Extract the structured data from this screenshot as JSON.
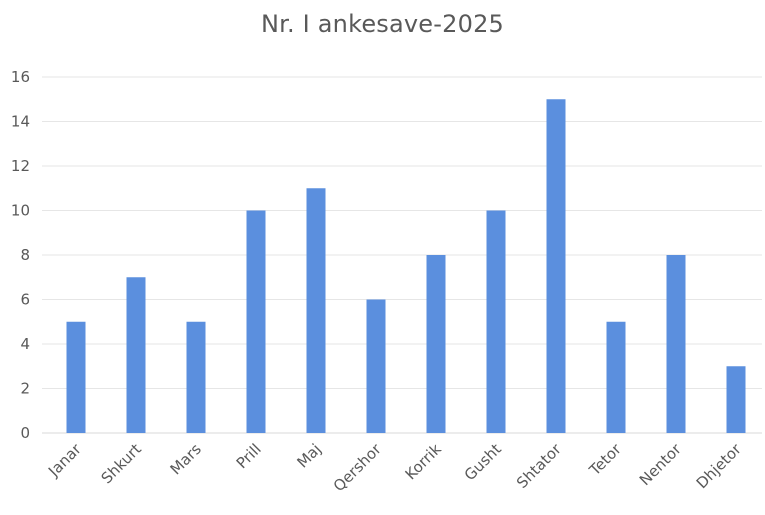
{
  "chart_data": {
    "type": "bar",
    "title": "Nr. I ankesave-2025",
    "xlabel": "",
    "ylabel": "",
    "categories": [
      "Janar",
      "Shkurt",
      "Mars",
      "Prill",
      "Maj",
      "Qershor",
      "Korrik",
      "Gusht",
      "Shtator",
      "Tetor",
      "Nentor",
      "Dhjetor"
    ],
    "values": [
      5,
      7,
      5,
      10,
      11,
      6,
      8,
      10,
      15,
      5,
      8,
      3
    ],
    "ylim": [
      0,
      16
    ],
    "yticks": [
      "0",
      "2",
      "4",
      "6",
      "8",
      "10",
      "12",
      "14",
      "16"
    ],
    "grid": true,
    "legend": "none",
    "bar_color": "#5b8fde",
    "grid_color": "#e6e6e6",
    "text_color": "#595959"
  }
}
